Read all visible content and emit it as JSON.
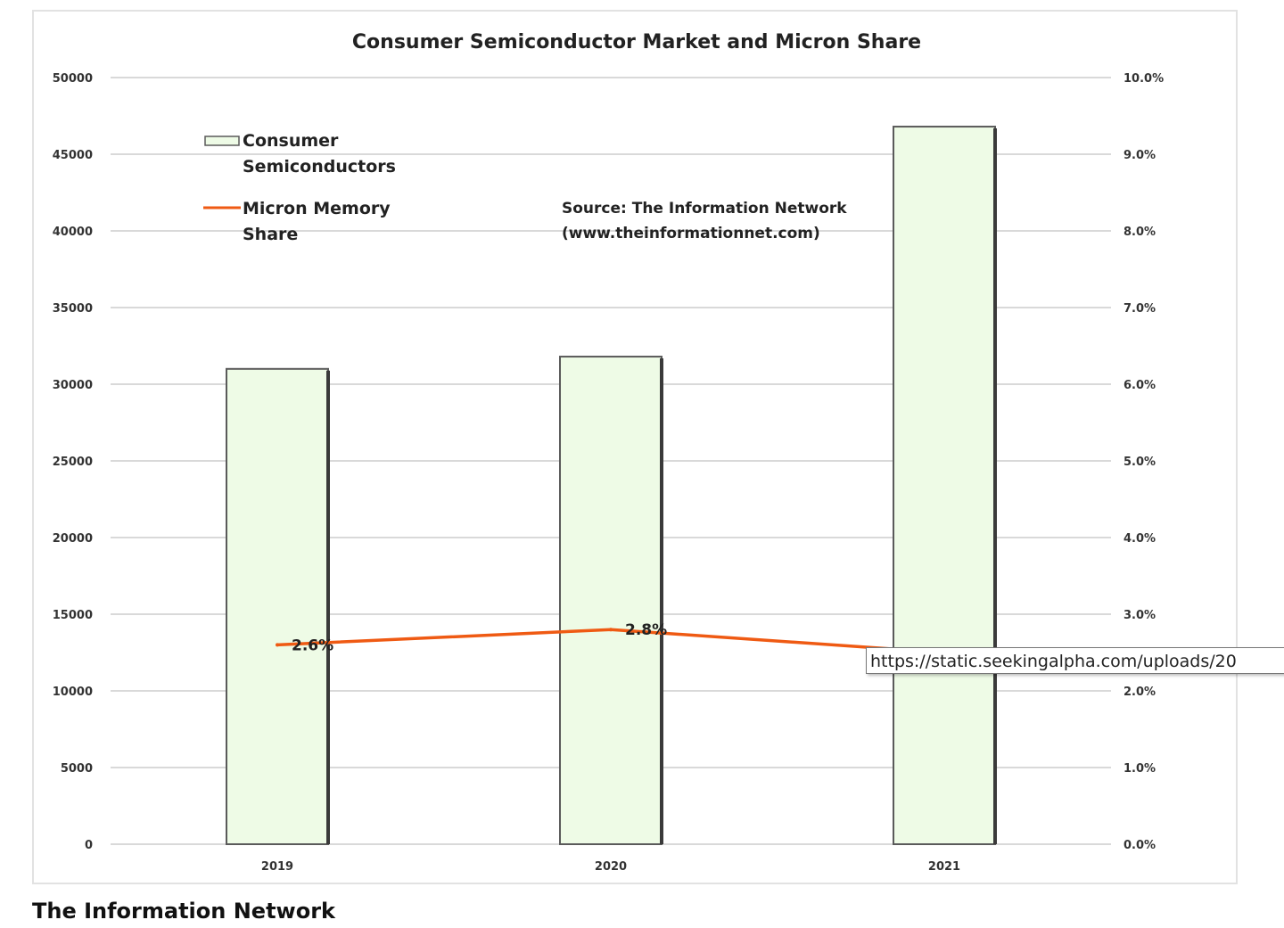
{
  "chart_data": {
    "type": "bar",
    "title": "Consumer Semiconductor Market and Micron Share",
    "categories": [
      "2019",
      "2020",
      "2021"
    ],
    "series": [
      {
        "name": "Consumer Semiconductors",
        "type": "bar",
        "axis": "left",
        "values": [
          31000,
          31800,
          46800
        ]
      },
      {
        "name": "Micron Memory Share",
        "type": "line",
        "axis": "right",
        "values": [
          0.026,
          0.028,
          0.025
        ],
        "data_labels": [
          "2.6%",
          "2.8%",
          ""
        ]
      }
    ],
    "y_left": {
      "ylim": [
        0,
        50000
      ],
      "ticks": [
        "0",
        "5000",
        "10000",
        "15000",
        "20000",
        "25000",
        "30000",
        "35000",
        "40000",
        "45000",
        "50000"
      ]
    },
    "y_right": {
      "ylim": [
        0,
        0.1
      ],
      "ticks": [
        "0.0%",
        "1.0%",
        "2.0%",
        "3.0%",
        "4.0%",
        "5.0%",
        "6.0%",
        "7.0%",
        "8.0%",
        "9.0%",
        "10.0%"
      ]
    },
    "grid": true,
    "legend_position": "top-left",
    "annotation": [
      "Source: The Information Network",
      "(www.theinformationnet.com)"
    ],
    "colors": {
      "bar_fill": "#eefbe6",
      "bar_edge": "#5a5a5a",
      "line": "#ef5a13",
      "grid": "#d9d9d9"
    }
  },
  "legend": {
    "bar_label_lines": [
      "Consumer",
      "Semiconductors"
    ],
    "line_label_lines": [
      "Micron Memory",
      "Share"
    ]
  },
  "tooltip_text": "https://static.seekingalpha.com/uploads/20",
  "caption": "The Information Network"
}
